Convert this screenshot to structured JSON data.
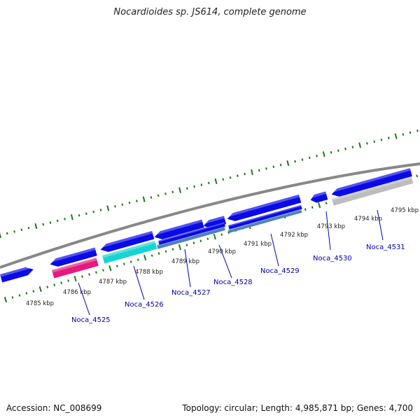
{
  "title": "Nocardioides sp. JS614, complete genome",
  "footer": {
    "accession": "Accession: NC_008699",
    "topology": "Topology: circular; Length: 4,985,871 bp; Genes: 4,700"
  },
  "colors": {
    "genome_line": "#888888",
    "ticks": "#1a7a1a",
    "gene_blue": "#0a0ae8",
    "gene_magenta": "#e6197d",
    "gene_cyan": "#17d4d4",
    "gene_steel": "#4f7fbf",
    "gene_gray": "#bdbdbd",
    "label_blue": "#0000aa"
  },
  "kbp_labels": [
    "4785 kbp",
    "4786 kbp",
    "4787 kbp",
    "4788 kbp",
    "4789 kbp",
    "4790 kbp",
    "4791 kbp",
    "4792 kbp",
    "4793 kbp",
    "4794 kbp",
    "4795 kbp"
  ],
  "genes": [
    {
      "name": "Noca_4525"
    },
    {
      "name": "Noca_4526"
    },
    {
      "name": "Noca_4527"
    },
    {
      "name": "Noca_4528"
    },
    {
      "name": "Noca_4529"
    },
    {
      "name": "Noca_4530"
    },
    {
      "name": "Noca_4531"
    }
  ]
}
